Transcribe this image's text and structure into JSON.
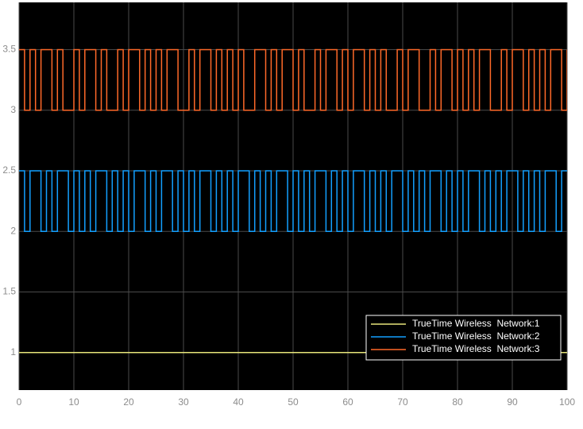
{
  "chart_data": {
    "type": "line",
    "step": true,
    "background": "#000000",
    "grid": true,
    "legend": "lower right",
    "xlim": [
      0,
      100
    ],
    "xticks": [
      0,
      10,
      20,
      30,
      40,
      50,
      60,
      70,
      80,
      90,
      100
    ],
    "ylim": [
      0.69,
      3.89
    ],
    "yticks": [
      1,
      1.5,
      2,
      2.5,
      3,
      3.5
    ],
    "x": [
      0,
      1,
      2,
      3,
      4,
      5,
      6,
      7,
      8,
      9,
      10,
      11,
      12,
      13,
      14,
      15,
      16,
      17,
      18,
      19,
      20,
      21,
      22,
      23,
      24,
      25,
      26,
      27,
      28,
      29,
      30,
      31,
      32,
      33,
      34,
      35,
      36,
      37,
      38,
      39,
      40,
      41,
      42,
      43,
      44,
      45,
      46,
      47,
      48,
      49,
      50,
      51,
      52,
      53,
      54,
      55,
      56,
      57,
      58,
      59,
      60,
      61,
      62,
      63,
      64,
      65,
      66,
      67,
      68,
      69,
      70,
      71,
      72,
      73,
      74,
      75,
      76,
      77,
      78,
      79,
      80,
      81,
      82,
      83,
      84,
      85,
      86,
      87,
      88,
      89,
      90,
      91,
      92,
      93,
      94,
      95,
      96,
      97,
      98,
      99,
      100
    ],
    "series": [
      {
        "name": "TrueTime Wireless  Network:1",
        "color": "#e8e67a",
        "values": [
          1,
          1,
          1,
          1,
          1,
          1,
          1,
          1,
          1,
          1,
          1,
          1,
          1,
          1,
          1,
          1,
          1,
          1,
          1,
          1,
          1,
          1,
          1,
          1,
          1,
          1,
          1,
          1,
          1,
          1,
          1,
          1,
          1,
          1,
          1,
          1,
          1,
          1,
          1,
          1,
          1,
          1,
          1,
          1,
          1,
          1,
          1,
          1,
          1,
          1,
          1,
          1,
          1,
          1,
          1,
          1,
          1,
          1,
          1,
          1,
          1,
          1,
          1,
          1,
          1,
          1,
          1,
          1,
          1,
          1,
          1,
          1,
          1,
          1,
          1,
          1,
          1,
          1,
          1,
          1,
          1,
          1,
          1,
          1,
          1,
          1,
          1,
          1,
          1,
          1,
          1,
          1,
          1,
          1,
          1,
          1,
          1,
          1,
          1,
          1,
          1
        ]
      },
      {
        "name": "TrueTime Wireless  Network:2",
        "color": "#13a0ff",
        "values": [
          2.5,
          2,
          2.5,
          2.5,
          2,
          2.5,
          2,
          2.5,
          2.5,
          2,
          2.5,
          2,
          2.5,
          2,
          2.5,
          2.5,
          2,
          2.5,
          2,
          2.5,
          2,
          2.5,
          2.5,
          2,
          2.5,
          2,
          2.5,
          2.5,
          2,
          2.5,
          2,
          2.5,
          2,
          2.5,
          2.5,
          2,
          2.5,
          2,
          2.5,
          2,
          2.5,
          2.5,
          2,
          2.5,
          2,
          2.5,
          2,
          2.5,
          2.5,
          2,
          2.5,
          2,
          2.5,
          2,
          2.5,
          2.5,
          2,
          2.5,
          2,
          2.5,
          2,
          2.5,
          2.5,
          2,
          2.5,
          2,
          2.5,
          2,
          2.5,
          2.5,
          2,
          2.5,
          2,
          2.5,
          2,
          2.5,
          2.5,
          2,
          2.5,
          2,
          2.5,
          2,
          2.5,
          2.5,
          2,
          2.5,
          2,
          2.5,
          2,
          2.5,
          2.5,
          2,
          2.5,
          2,
          2.5,
          2,
          2.5,
          2.5,
          2,
          2.5,
          2.5
        ]
      },
      {
        "name": "TrueTime Wireless  Network:3",
        "color": "#ff6929",
        "values": [
          3.5,
          3,
          3.5,
          3,
          3.5,
          3.5,
          3,
          3.5,
          3,
          3,
          3.5,
          3,
          3.5,
          3.5,
          3,
          3.5,
          3,
          3,
          3.5,
          3,
          3.5,
          3.5,
          3,
          3.5,
          3,
          3.5,
          3,
          3.5,
          3.5,
          3,
          3,
          3.5,
          3,
          3.5,
          3.5,
          3,
          3.5,
          3,
          3.5,
          3,
          3.5,
          3,
          3,
          3.5,
          3.5,
          3,
          3.5,
          3,
          3.5,
          3.5,
          3,
          3.5,
          3,
          3,
          3.5,
          3,
          3.5,
          3.5,
          3,
          3.5,
          3,
          3.5,
          3.5,
          3,
          3.5,
          3,
          3.5,
          3,
          3,
          3.5,
          3,
          3.5,
          3.5,
          3,
          3,
          3.5,
          3,
          3.5,
          3.5,
          3,
          3.5,
          3,
          3.5,
          3,
          3.5,
          3.5,
          3,
          3,
          3.5,
          3,
          3.5,
          3.5,
          3,
          3.5,
          3,
          3.5,
          3,
          3.5,
          3.5,
          3,
          3.5
        ]
      }
    ]
  }
}
